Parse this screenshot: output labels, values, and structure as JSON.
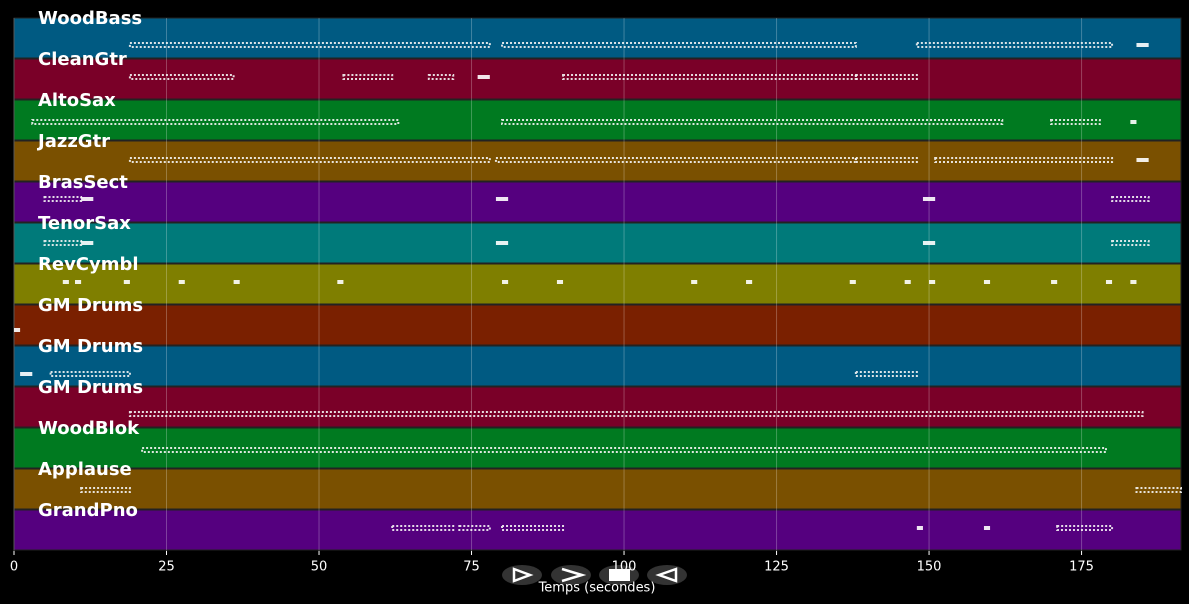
{
  "chart_data": {
    "type": "piano-roll",
    "xlabel": "Temps (secondes)",
    "xlim": [
      0,
      191.3
    ],
    "xticks": [
      0,
      25,
      50,
      75,
      100,
      125,
      150,
      175
    ],
    "grid": true,
    "tracks": [
      {
        "name": "WoodBass",
        "color": "#005a82",
        "notes": [
          [
            19,
            78
          ],
          [
            80,
            138
          ],
          [
            148,
            180
          ],
          [
            184,
            186
          ]
        ]
      },
      {
        "name": "CleanGtr",
        "color": "#7a0028",
        "notes": [
          [
            19,
            36
          ],
          [
            54,
            62
          ],
          [
            68,
            72
          ],
          [
            76,
            78
          ],
          [
            90,
            138
          ],
          [
            138,
            148
          ]
        ]
      },
      {
        "name": "AltoSax",
        "color": "#007a20",
        "notes": [
          [
            3,
            63
          ],
          [
            80,
            162
          ],
          [
            170,
            178
          ],
          [
            183,
            184
          ]
        ]
      },
      {
        "name": "JazzGtr",
        "color": "#7a5000",
        "notes": [
          [
            19,
            78
          ],
          [
            79,
            138
          ],
          [
            138,
            148
          ],
          [
            151,
            180
          ],
          [
            184,
            186
          ]
        ]
      },
      {
        "name": "BrasSect",
        "color": "#55007f",
        "notes": [
          [
            5,
            11
          ],
          [
            11,
            13
          ],
          [
            79,
            81
          ],
          [
            149,
            151
          ],
          [
            180,
            186
          ]
        ]
      },
      {
        "name": "TenorSax",
        "color": "#007a7a",
        "notes": [
          [
            5,
            11
          ],
          [
            11,
            13
          ],
          [
            79,
            81
          ],
          [
            149,
            151
          ],
          [
            180,
            186
          ]
        ]
      },
      {
        "name": "RevCymbl",
        "color": "#7f7f00",
        "notes": [
          [
            8,
            9
          ],
          [
            10,
            11
          ],
          [
            18,
            19
          ],
          [
            27,
            28
          ],
          [
            36,
            37
          ],
          [
            53,
            54
          ],
          [
            80,
            81
          ],
          [
            89,
            90
          ],
          [
            111,
            112
          ],
          [
            120,
            121
          ],
          [
            137,
            138
          ],
          [
            146,
            147
          ],
          [
            150,
            151
          ],
          [
            159,
            160
          ],
          [
            170,
            171
          ],
          [
            179,
            180
          ],
          [
            183,
            184
          ]
        ]
      },
      {
        "name": "GM Drums",
        "color": "#7a2000",
        "notes": [
          [
            0,
            1
          ]
        ]
      },
      {
        "name": "GM Drums",
        "color": "#005a82",
        "notes": [
          [
            1,
            3
          ],
          [
            6,
            19
          ],
          [
            138,
            148
          ]
        ]
      },
      {
        "name": "GM Drums",
        "color": "#7a0028",
        "notes": [
          [
            19,
            185
          ]
        ]
      },
      {
        "name": "WoodBlok",
        "color": "#007a20",
        "notes": [
          [
            21,
            179
          ]
        ]
      },
      {
        "name": "Applause",
        "color": "#7a5000",
        "notes": [
          [
            11,
            19
          ],
          [
            184,
            191.3
          ]
        ]
      },
      {
        "name": "GrandPno",
        "color": "#55007f",
        "notes": [
          [
            62,
            72
          ],
          [
            73,
            78
          ],
          [
            80,
            90
          ],
          [
            148,
            149
          ],
          [
            159,
            160
          ],
          [
            171,
            180
          ]
        ]
      }
    ]
  }
}
